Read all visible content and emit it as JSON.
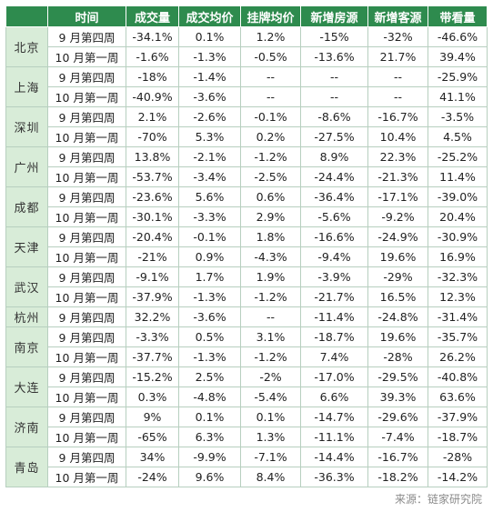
{
  "headers": [
    "",
    "时间",
    "成交量",
    "成交均价",
    "挂牌均价",
    "新增房源",
    "新增客源",
    "带看量"
  ],
  "cities": [
    {
      "name": "北京",
      "rows": [
        [
          "9 月第四周",
          "-34.1%",
          "0.1%",
          "1.2%",
          "-15%",
          "-32%",
          "-46.6%"
        ],
        [
          "10 月第一周",
          "-1.6%",
          "-1.3%",
          "-0.5%",
          "-13.6%",
          "21.7%",
          "39.4%"
        ]
      ]
    },
    {
      "name": "上海",
      "rows": [
        [
          "9 月第四周",
          "-18%",
          "-1.4%",
          "--",
          "--",
          "--",
          "-25.9%"
        ],
        [
          "10 月第一周",
          "-40.9%",
          "-3.6%",
          "--",
          "--",
          "--",
          "41.1%"
        ]
      ]
    },
    {
      "name": "深圳",
      "rows": [
        [
          "9 月第四周",
          "2.1%",
          "-2.6%",
          "-0.1%",
          "-8.6%",
          "-16.7%",
          "-3.5%"
        ],
        [
          "10 月第一周",
          "-70%",
          "5.3%",
          "0.2%",
          "-27.5%",
          "10.4%",
          "4.5%"
        ]
      ]
    },
    {
      "name": "广州",
      "rows": [
        [
          "9 月第四周",
          "13.8%",
          "-2.1%",
          "-1.2%",
          "8.9%",
          "22.3%",
          "-25.2%"
        ],
        [
          "10 月第一周",
          "-53.7%",
          "-3.4%",
          "-2.5%",
          "-24.4%",
          "-21.3%",
          "11.4%"
        ]
      ]
    },
    {
      "name": "成都",
      "rows": [
        [
          "9 月第四周",
          "-23.6%",
          "5.6%",
          "0.6%",
          "-36.4%",
          "-17.1%",
          "-39.0%"
        ],
        [
          "10 月第一周",
          "-30.1%",
          "-3.3%",
          "2.9%",
          "-5.6%",
          "-9.2%",
          "20.4%"
        ]
      ]
    },
    {
      "name": "天津",
      "rows": [
        [
          "9 月第四周",
          "-20.4%",
          "-0.1%",
          "1.8%",
          "-16.6%",
          "-24.9%",
          "-30.9%"
        ],
        [
          "10 月第一周",
          "-21%",
          "0.9%",
          "-4.3%",
          "-9.4%",
          "19.6%",
          "16.9%"
        ]
      ]
    },
    {
      "name": "武汉",
      "rows": [
        [
          "9 月第四周",
          "-9.1%",
          "1.7%",
          "1.9%",
          "-3.9%",
          "-29%",
          "-32.3%"
        ],
        [
          "10 月第一周",
          "-37.9%",
          "-1.3%",
          "-1.2%",
          "-21.7%",
          "16.5%",
          "12.3%"
        ]
      ]
    },
    {
      "name": "杭州",
      "rows": [
        [
          "9 月第四周",
          "32.2%",
          "-3.6%",
          "--",
          "-11.4%",
          "-24.8%",
          "-31.4%"
        ]
      ]
    },
    {
      "name": "南京",
      "rows": [
        [
          "9 月第四周",
          "-3.3%",
          "0.5%",
          "3.1%",
          "-18.7%",
          "19.6%",
          "-35.7%"
        ],
        [
          "10 月第一周",
          "-37.7%",
          "-1.3%",
          "-1.2%",
          "7.4%",
          "-28%",
          "26.2%"
        ]
      ]
    },
    {
      "name": "大连",
      "rows": [
        [
          "9 月第四周",
          "-15.2%",
          "2.5%",
          "-2%",
          "-17.0%",
          "-29.5%",
          "-40.8%"
        ],
        [
          "10 月第一周",
          "0.3%",
          "-4.8%",
          "-5.4%",
          "6.6%",
          "39.3%",
          "63.6%"
        ]
      ]
    },
    {
      "name": "济南",
      "rows": [
        [
          "9 月第四周",
          "9%",
          "0.1%",
          "0.1%",
          "-14.7%",
          "-29.6%",
          "-37.9%"
        ],
        [
          "10 月第一周",
          "-65%",
          "6.3%",
          "1.3%",
          "-11.1%",
          "-7.4%",
          "-18.7%"
        ]
      ]
    },
    {
      "name": "青岛",
      "rows": [
        [
          "9 月第四周",
          "34%",
          "-9.9%",
          "-7.1%",
          "-14.4%",
          "-16.7%",
          "-28%"
        ],
        [
          "10 月第一周",
          "-24%",
          "9.6%",
          "8.4%",
          "-36.3%",
          "-18.2%",
          "-14.2%"
        ]
      ]
    }
  ],
  "source": "来源：链家研究院",
  "colors": {
    "header_bg": "#2e8b4e",
    "city_bg": "#d8ecd8",
    "border": "#b7cfbf"
  }
}
